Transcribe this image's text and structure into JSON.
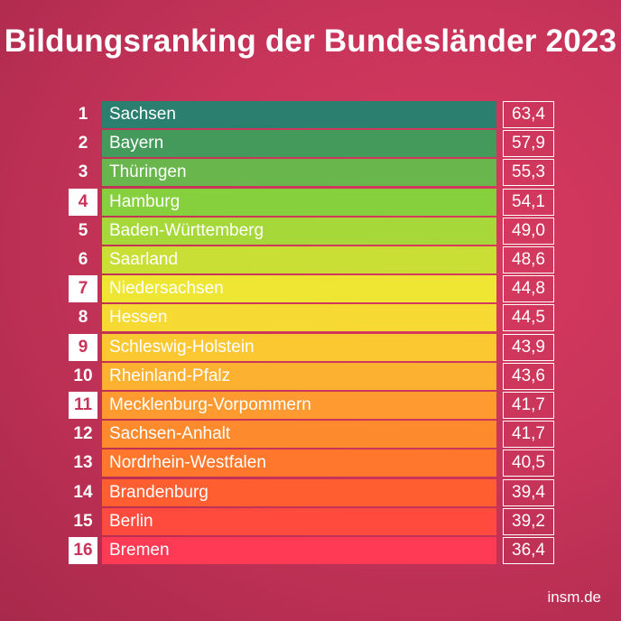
{
  "title": "Bildungsranking der Bundesländer 2023",
  "source": "insm.de",
  "chart_data": {
    "type": "bar",
    "title": "Bildungsranking der Bundesländer 2023",
    "ranks": [
      "1",
      "2",
      "3",
      "4",
      "5",
      "6",
      "7",
      "8",
      "9",
      "10",
      "11",
      "12",
      "13",
      "14",
      "15",
      "16"
    ],
    "categories": [
      "Sachsen",
      "Bayern",
      "Thüringen",
      "Hamburg",
      "Baden-Württemberg",
      "Saarland",
      "Niedersachsen",
      "Hessen",
      "Schleswig-Holstein",
      "Rheinland-Pfalz",
      "Mecklenburg-Vorpommern",
      "Sachsen-Anhalt",
      "Nordrhein-Westfalen",
      "Brandenburg",
      "Berlin",
      "Bremen"
    ],
    "values": [
      63.4,
      57.9,
      55.3,
      54.1,
      49.0,
      48.6,
      44.8,
      44.5,
      43.9,
      43.6,
      41.7,
      41.7,
      40.5,
      39.4,
      39.2,
      36.4
    ],
    "value_labels": [
      "63,4",
      "57,9",
      "55,3",
      "54,1",
      "49,0",
      "48,6",
      "44,8",
      "44,5",
      "43,9",
      "43,6",
      "41,7",
      "41,7",
      "40,5",
      "39,4",
      "39,2",
      "36,4"
    ],
    "bar_colors": [
      "#2a7f6e",
      "#449a5b",
      "#68b64c",
      "#86cf3d",
      "#a6d83a",
      "#c9df36",
      "#eee633",
      "#f6d933",
      "#fcc832",
      "#fdb130",
      "#fe9a2f",
      "#fe8a2e",
      "#fe772d",
      "#ff5e30",
      "#ff4a3e",
      "#ff3a55"
    ],
    "boxed_ranks": [
      "4",
      "7",
      "9",
      "11",
      "16"
    ]
  }
}
